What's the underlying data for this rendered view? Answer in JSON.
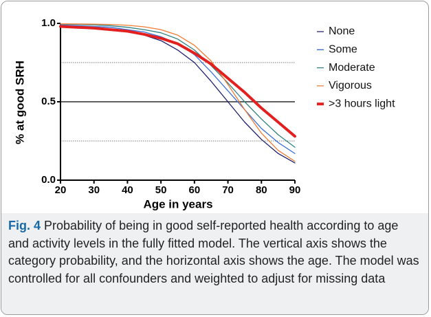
{
  "chart_data": {
    "type": "line",
    "x_label": "Age in years",
    "y_label": "% at good SRH",
    "x": [
      20,
      25,
      30,
      35,
      40,
      45,
      50,
      55,
      60,
      65,
      70,
      75,
      80,
      85,
      90
    ],
    "series": [
      {
        "name": "None",
        "color": "#1c1c6b",
        "width": 1.3,
        "values": [
          0.985,
          0.98,
          0.975,
          0.965,
          0.95,
          0.925,
          0.89,
          0.83,
          0.75,
          0.63,
          0.5,
          0.37,
          0.26,
          0.17,
          0.11
        ]
      },
      {
        "name": "Some",
        "color": "#3a6fd8",
        "width": 1.3,
        "values": [
          0.99,
          0.985,
          0.98,
          0.975,
          0.96,
          0.945,
          0.915,
          0.87,
          0.8,
          0.69,
          0.57,
          0.45,
          0.33,
          0.24,
          0.17
        ]
      },
      {
        "name": "Moderate",
        "color": "#2e8080",
        "width": 1.3,
        "values": [
          0.995,
          0.993,
          0.99,
          0.985,
          0.975,
          0.96,
          0.94,
          0.9,
          0.83,
          0.73,
          0.62,
          0.5,
          0.39,
          0.29,
          0.21
        ]
      },
      {
        "name": "Vigorous",
        "color": "#f07a30",
        "width": 1.3,
        "values": [
          0.997,
          0.996,
          0.995,
          0.993,
          0.988,
          0.978,
          0.96,
          0.925,
          0.86,
          0.76,
          0.61,
          0.45,
          0.3,
          0.19,
          0.12
        ]
      },
      {
        "name": ">3 hours light",
        "color": "#e32020",
        "width": 4,
        "values": [
          0.98,
          0.975,
          0.97,
          0.96,
          0.95,
          0.93,
          0.905,
          0.87,
          0.81,
          0.74,
          0.65,
          0.56,
          0.46,
          0.37,
          0.28
        ]
      }
    ],
    "xlim": [
      20,
      90
    ],
    "xticks": [
      20,
      30,
      40,
      50,
      60,
      70,
      80,
      90
    ],
    "ylim": [
      0,
      1
    ],
    "yticks": [
      {
        "value": 0,
        "label": "0.0"
      },
      0.5,
      {
        "value": 1,
        "label": "1.0"
      }
    ],
    "reference_lines": [
      {
        "value": 0.25,
        "style": "dotted"
      },
      {
        "value": 0.5,
        "style": "solid"
      },
      {
        "value": 0.75,
        "style": "dotted"
      }
    ],
    "legend": "right"
  },
  "caption_label": "Fig. 4",
  "caption": "Probability of being in good self-reported health according to age and activity levels in the fully fitted model. The vertical axis shows the category probability, and the horizontal axis shows the age. The model was controlled for all confounders and weighted to adjust for missing data"
}
